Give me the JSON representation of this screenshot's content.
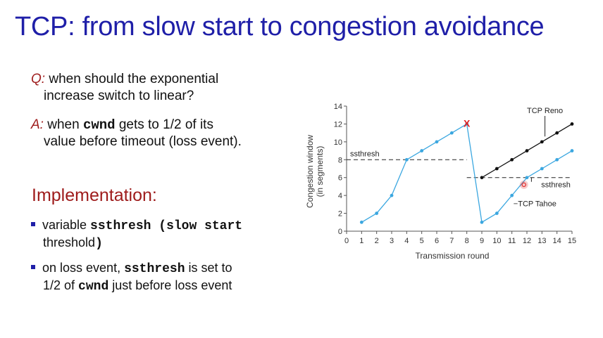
{
  "slide": {
    "title": "TCP: from slow start to congestion avoidance"
  },
  "qa": {
    "q_tag": "Q:",
    "q_line1": " when should the exponential",
    "q_line2": "increase switch to linear?",
    "a_tag": "A:",
    "a_line1_pre": " when ",
    "a_line1_code": "cwnd",
    "a_line1_post": " gets to 1/2 of its",
    "a_line2": "value before timeout (loss event)."
  },
  "implementation": {
    "heading": "Implementation:",
    "bullets": [
      {
        "pre": "variable ",
        "code": "ssthresh",
        "post": " (slow start",
        "cont_text": "threshold",
        "cont_code": ")"
      },
      {
        "pre": "on loss event, ",
        "code": "ssthresh",
        "post": " is set to",
        "cont_pre": "1/2 of ",
        "cont_code": "cwnd",
        "cont_post": " just before loss event"
      }
    ]
  },
  "chart_data": {
    "type": "line",
    "xlabel": "Transmission round",
    "ylabel_line1": "Congestion window",
    "ylabel_line2": "(in segments)",
    "xlim": [
      0,
      15
    ],
    "ylim": [
      0,
      14
    ],
    "x_ticks": [
      0,
      1,
      2,
      3,
      4,
      5,
      6,
      7,
      8,
      9,
      10,
      11,
      12,
      13,
      14,
      15
    ],
    "y_ticks": [
      0,
      2,
      4,
      6,
      8,
      10,
      12,
      14
    ],
    "grid": false,
    "colors": {
      "tahoe": "#3ba7e0",
      "reno": "#111111",
      "loss_marker": "#e02020",
      "highlight": "#e03030"
    },
    "series": [
      {
        "name": "TCP Tahoe",
        "points": [
          [
            1,
            1
          ],
          [
            2,
            2
          ],
          [
            3,
            4
          ],
          [
            4,
            8
          ],
          [
            5,
            9
          ],
          [
            6,
            10
          ],
          [
            7,
            11
          ],
          [
            8,
            12
          ],
          [
            9,
            1
          ],
          [
            10,
            2
          ],
          [
            11,
            4
          ],
          [
            12,
            6
          ],
          [
            13,
            7
          ],
          [
            14,
            8
          ],
          [
            15,
            9
          ]
        ]
      },
      {
        "name": "TCP Reno",
        "points": [
          [
            9,
            6
          ],
          [
            10,
            7
          ],
          [
            11,
            8
          ],
          [
            12,
            9
          ],
          [
            13,
            10
          ],
          [
            14,
            11
          ],
          [
            15,
            12
          ]
        ]
      }
    ],
    "thresholds": [
      {
        "label": "ssthresh",
        "y": 8,
        "x_from": 0,
        "x_to": 8
      },
      {
        "label": "ssthresh",
        "y": 6,
        "x_from": 8,
        "x_to": 15
      }
    ],
    "loss_marker": {
      "label": "X",
      "x": 8,
      "y": 12
    },
    "highlight_point": {
      "x": 11.8,
      "y": 5.2
    },
    "annotations": {
      "reno_label": "TCP Reno",
      "tahoe_label": "TCP Tahoe",
      "ssthresh_low_label": "ssthresh",
      "ssthresh_high_label": "ssthresh"
    }
  }
}
